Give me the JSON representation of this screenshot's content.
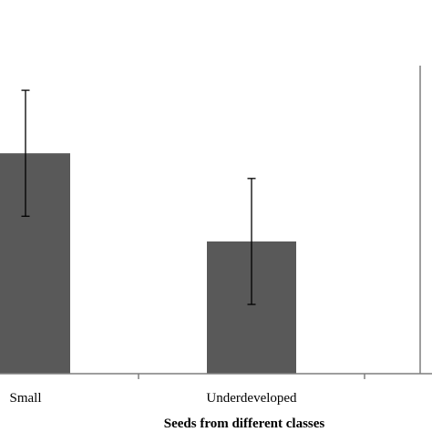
{
  "chart_data": {
    "type": "bar",
    "categories": [
      "Small",
      "Underdeveloped"
    ],
    "values": [
      0.7,
      0.42
    ],
    "error_bars": [
      [
        0.9,
        0.5
      ],
      [
        0.62,
        0.22
      ]
    ],
    "xlabel": "Seeds from different classes",
    "ylabel": "",
    "ylim": [
      0,
      1.1
    ],
    "grid": false,
    "legend": "none",
    "colors": {
      "bar": "#595959",
      "axis": "#7f7f7f",
      "error": "#000000"
    }
  }
}
